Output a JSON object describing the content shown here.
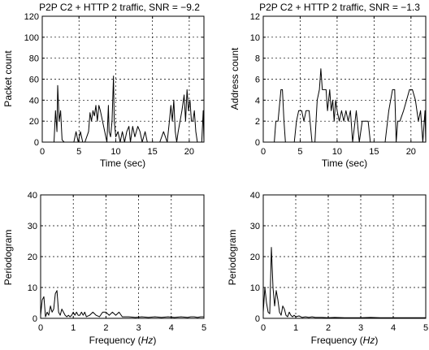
{
  "figure": {
    "panels": [
      {
        "id": "p-tl",
        "title": "P2P C2 + HTTP 2 traffic, SNR = −9.2",
        "xlabel": "Time (sec)",
        "ylabel": "Packet count",
        "xlabel_parts": []
      },
      {
        "id": "p-tr",
        "title": "P2P C2 + HTTP 2 traffic, SNR = −1.3",
        "xlabel": "Time (sec)",
        "ylabel": "Address count",
        "xlabel_parts": []
      },
      {
        "id": "p-bl",
        "title": "",
        "xlabel": "",
        "ylabel": "Periodogram",
        "xlabel_parts": [
          "Frequency (",
          "Hz",
          ")"
        ]
      },
      {
        "id": "p-br",
        "title": "",
        "xlabel": "",
        "ylabel": "Periodogram",
        "xlabel_parts": [
          "Frequency (",
          "Hz",
          ")"
        ]
      }
    ]
  },
  "chart_data": [
    {
      "type": "line",
      "title": "P2P C2 + HTTP 2 traffic, SNR = −9.2",
      "xlabel": "Time (sec)",
      "ylabel": "Packet count",
      "xlim": [
        0,
        22
      ],
      "ylim": [
        0,
        120
      ],
      "xticks": [
        0,
        5,
        10,
        15,
        20
      ],
      "yticks": [
        0,
        20,
        40,
        60,
        80,
        100,
        120
      ],
      "grid": true,
      "x": [
        0,
        0.6,
        1.6,
        1.8,
        2.0,
        2.1,
        2.3,
        2.5,
        2.7,
        3.0,
        4.3,
        4.6,
        4.9,
        5.2,
        5.5,
        5.8,
        6.3,
        6.5,
        6.7,
        6.9,
        7.1,
        7.3,
        7.5,
        7.7,
        7.9,
        8.2,
        8.5,
        8.8,
        9.0,
        9.1,
        9.3,
        9.5,
        9.7,
        9.8,
        10.0,
        10.3,
        10.6,
        10.9,
        11.2,
        11.5,
        11.8,
        12.0,
        12.3,
        12.6,
        13.0,
        13.3,
        13.6,
        14.0,
        14.3,
        14.5,
        16.0,
        16.5,
        17.0,
        17.3,
        17.5,
        17.7,
        17.9,
        18.1,
        18.3,
        18.5,
        19.0,
        19.3,
        19.5,
        19.7,
        19.9,
        20.1,
        20.3,
        20.5,
        20.7,
        20.9,
        21.1,
        21.4,
        21.7,
        21.9,
        22.0
      ],
      "values": [
        0,
        0,
        0,
        30,
        10,
        54,
        20,
        30,
        2,
        0,
        0,
        10,
        0,
        10,
        0,
        0,
        10,
        28,
        20,
        30,
        25,
        35,
        20,
        35,
        30,
        20,
        10,
        0,
        35,
        10,
        5,
        20,
        63,
        20,
        5,
        10,
        0,
        10,
        0,
        10,
        15,
        0,
        15,
        5,
        15,
        10,
        0,
        10,
        0,
        0,
        0,
        10,
        0,
        20,
        35,
        20,
        40,
        10,
        0,
        10,
        30,
        45,
        20,
        50,
        30,
        40,
        20,
        20,
        30,
        10,
        0,
        0,
        0,
        30,
        0
      ]
    },
    {
      "type": "line",
      "title": "P2P C2 + HTTP 2 traffic, SNR = −1.3",
      "xlabel": "Time (sec)",
      "ylabel": "Address count",
      "xlim": [
        0,
        22
      ],
      "ylim": [
        0,
        12
      ],
      "xticks": [
        0,
        5,
        10,
        15,
        20
      ],
      "yticks": [
        0,
        2,
        4,
        6,
        8,
        10,
        12
      ],
      "grid": true,
      "x": [
        0,
        1.5,
        1.7,
        2.0,
        2.4,
        2.6,
        2.8,
        3.0,
        4.2,
        4.5,
        4.8,
        5.2,
        5.5,
        5.8,
        6.2,
        6.6,
        7.0,
        7.3,
        7.6,
        7.8,
        8.0,
        8.5,
        8.7,
        9.0,
        9.2,
        9.4,
        9.6,
        9.8,
        10.0,
        10.3,
        10.6,
        10.9,
        11.2,
        11.5,
        11.8,
        12.1,
        12.6,
        13.0,
        13.4,
        14.2,
        14.5,
        15.8,
        16.5,
        17.0,
        17.5,
        17.8,
        18.0,
        18.2,
        18.5,
        19.0,
        19.4,
        19.8,
        20.2,
        20.6,
        21.0,
        21.3,
        21.6,
        21.9,
        22.0
      ],
      "values": [
        0,
        0,
        2,
        2,
        5,
        5,
        2,
        0,
        0,
        2,
        3,
        3,
        2,
        3,
        3,
        0,
        0,
        4,
        5,
        7,
        5,
        5,
        3,
        5,
        3,
        4,
        2,
        4,
        3,
        2,
        3,
        2,
        3,
        2,
        3,
        0,
        3,
        0,
        2,
        2,
        0,
        0,
        0,
        3,
        5,
        5,
        0,
        2,
        2,
        3,
        4,
        5,
        5,
        4,
        2,
        3,
        0,
        3,
        0
      ]
    },
    {
      "type": "line",
      "title": "",
      "xlabel": "Frequency (Hz)",
      "ylabel": "Periodogram",
      "xlim": [
        0,
        5
      ],
      "ylim": [
        0,
        40
      ],
      "xticks": [
        0,
        1,
        2,
        3,
        4,
        5
      ],
      "yticks": [
        0,
        10,
        20,
        30,
        40
      ],
      "grid": true,
      "x": [
        0,
        0.05,
        0.1,
        0.15,
        0.2,
        0.25,
        0.3,
        0.35,
        0.4,
        0.45,
        0.5,
        0.55,
        0.6,
        0.65,
        0.7,
        0.75,
        0.8,
        0.85,
        0.9,
        0.95,
        1.0,
        1.05,
        1.1,
        1.15,
        1.2,
        1.25,
        1.3,
        1.35,
        1.4,
        1.5,
        1.6,
        1.7,
        1.8,
        1.9,
        2.0,
        2.1,
        2.2,
        2.3,
        2.4,
        2.5,
        2.7,
        2.9,
        3.1,
        3.3,
        3.5,
        3.7,
        3.9,
        4.1,
        4.3,
        4.5,
        4.6,
        4.7,
        4.8,
        4.9,
        5.0
      ],
      "values": [
        1,
        6,
        7,
        0.5,
        2,
        1,
        4,
        2,
        3,
        8,
        9,
        2,
        1,
        3,
        2,
        1,
        0.5,
        1,
        0.5,
        1,
        2,
        1,
        2,
        1,
        1,
        2,
        1,
        2,
        0.5,
        1,
        2,
        1,
        0.5,
        2,
        2,
        1,
        2,
        1,
        2,
        0.5,
        0.5,
        0.3,
        0.5,
        0.3,
        0.5,
        0.3,
        0.5,
        0.3,
        0.5,
        0.3,
        0.5,
        0.5,
        0.3,
        0.5,
        0.5
      ]
    },
    {
      "type": "line",
      "title": "",
      "xlabel": "Frequency (Hz)",
      "ylabel": "Periodogram",
      "xlim": [
        0,
        5
      ],
      "ylim": [
        0,
        40
      ],
      "xticks": [
        0,
        1,
        2,
        3,
        4,
        5
      ],
      "yticks": [
        0,
        10,
        20,
        30,
        40
      ],
      "grid": true,
      "x": [
        0,
        0.05,
        0.1,
        0.15,
        0.2,
        0.25,
        0.3,
        0.35,
        0.4,
        0.45,
        0.5,
        0.55,
        0.6,
        0.65,
        0.7,
        0.75,
        0.8,
        0.85,
        0.9,
        0.95,
        1.0,
        1.1,
        1.2,
        1.3,
        1.4,
        1.5,
        1.6,
        1.8,
        2.0,
        2.2,
        2.5,
        2.8,
        3.0,
        3.3,
        3.6,
        4.0,
        4.3,
        4.6,
        5.0
      ],
      "values": [
        2,
        10,
        5,
        2,
        1.5,
        23,
        10,
        4,
        9,
        6,
        2,
        1,
        4,
        3,
        1,
        0.5,
        2,
        1,
        0.5,
        1,
        0.5,
        0.8,
        0.3,
        0.5,
        0.3,
        0.5,
        0.3,
        0.3,
        0.2,
        0.3,
        0.2,
        0.2,
        0.2,
        0.3,
        0.2,
        0.2,
        0.2,
        0.2,
        0.2
      ]
    }
  ]
}
